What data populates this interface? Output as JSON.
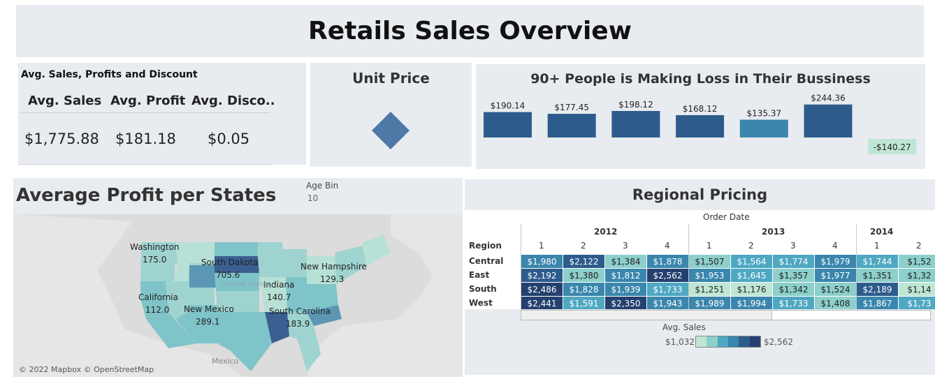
{
  "title": "Retails Sales Overview",
  "kpi": {
    "title": "Avg. Sales, Profits and Discount",
    "headers": [
      "Avg. Sales",
      "Avg. Profit",
      "Avg. Disco.."
    ],
    "values": [
      "$1,775.88",
      "$181.18",
      "$0.05"
    ]
  },
  "unit_price": {
    "title": "Unit Price",
    "marker_color": "#4e79a7"
  },
  "loss": {
    "title": "90+ People is Making Loss in Their Bussiness",
    "chart_data": {
      "type": "bar",
      "categories": [
        "",
        "",
        "",
        "",
        "",
        "",
        ""
      ],
      "values": [
        190.14,
        177.45,
        198.12,
        168.12,
        135.37,
        244.36,
        -140.27
      ],
      "labels": [
        "$190.14",
        "$177.45",
        "$198.12",
        "$168.12",
        "$135.37",
        "$244.36",
        "-$140.27"
      ],
      "colors": [
        "#2d5c8c",
        "#2d5c8c",
        "#2d5c8c",
        "#2d5c8c",
        "#3a86ad",
        "#2d5c8c",
        "#bfe6d5"
      ]
    }
  },
  "map": {
    "title": "Average Profit per States",
    "age_bin_label": "Age Bin",
    "age_bin_value": "10",
    "copyright": "© 2022 Mapbox © OpenStreetMap",
    "mexico": "Mexico",
    "united_states": "United States",
    "labels": [
      {
        "state": "Washington",
        "value": "175.0"
      },
      {
        "state": "South Dakota",
        "value": "705.6"
      },
      {
        "state": "New Hampshire",
        "value": "129.3"
      },
      {
        "state": "Indiana",
        "value": "140.7"
      },
      {
        "state": "California",
        "value": "112.0"
      },
      {
        "state": "New Mexico",
        "value": "289.1"
      },
      {
        "state": "South Carolina",
        "value": "183.9"
      }
    ]
  },
  "regional": {
    "title": "Regional Pricing",
    "order_date_label": "Order Date",
    "region_label": "Region",
    "years": [
      "2012",
      "2013",
      "2014"
    ],
    "quarters": [
      "1",
      "2",
      "3",
      "4",
      "1",
      "2",
      "3",
      "4",
      "1",
      "2"
    ],
    "rows": [
      {
        "region": "Central",
        "cells": [
          "$1,980",
          "$2,122",
          "$1,384",
          "$1,878",
          "$1,507",
          "$1,564",
          "$1,774",
          "$1,979",
          "$1,744",
          "$1,52"
        ]
      },
      {
        "region": "East",
        "cells": [
          "$2,192",
          "$1,380",
          "$1,812",
          "$2,562",
          "$1,953",
          "$1,645",
          "$1,357",
          "$1,977",
          "$1,351",
          "$1,32"
        ]
      },
      {
        "region": "South",
        "cells": [
          "$2,486",
          "$1,828",
          "$1,939",
          "$1,733",
          "$1,251",
          "$1,176",
          "$1,342",
          "$1,524",
          "$2,189",
          "$1,14"
        ]
      },
      {
        "region": "West",
        "cells": [
          "$2,441",
          "$1,591",
          "$2,350",
          "$1,943",
          "$1,989",
          "$1,994",
          "$1,733",
          "$1,408",
          "$1,867",
          "$1,73"
        ]
      }
    ],
    "legend_title": "Avg. Sales",
    "legend_min": "$1,032",
    "legend_max": "$2,562",
    "legend_colors": [
      "#bfe6d5",
      "#8ccfcb",
      "#4fa8c2",
      "#3a86ad",
      "#2d5c8c",
      "#24406e"
    ]
  }
}
